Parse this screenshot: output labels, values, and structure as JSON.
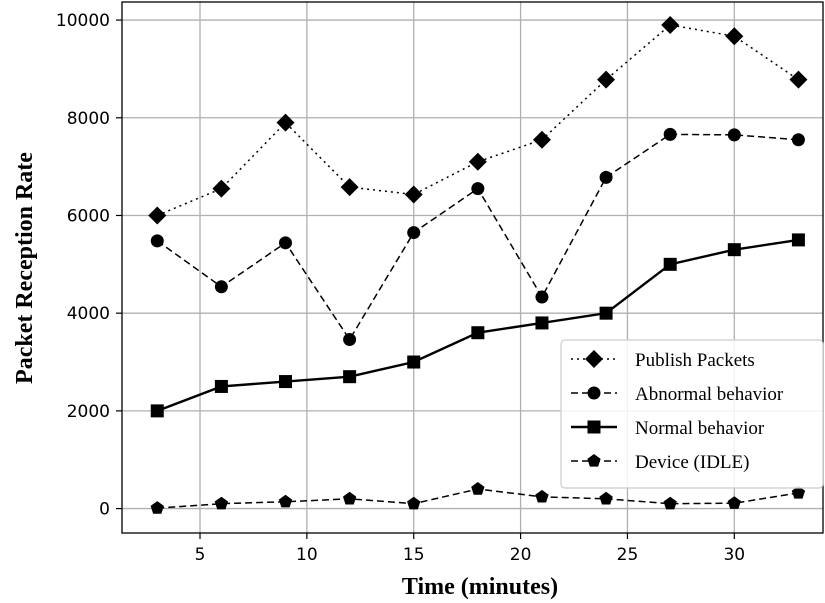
{
  "chart_data": {
    "type": "line",
    "xlabel": "Time (minutes)",
    "ylabel": "Packet Reception Rate",
    "xlim": [
      1.35,
      34.15
    ],
    "ylim": [
      -500,
      10370
    ],
    "xticks": [
      5,
      10,
      15,
      20,
      25,
      30
    ],
    "yticks": [
      0,
      2000,
      4000,
      6000,
      8000,
      10000
    ],
    "grid": true,
    "legend_position": "lower-right",
    "x": [
      3,
      6,
      9,
      12,
      15,
      18,
      21,
      24,
      27,
      30,
      33
    ],
    "series": [
      {
        "name": "Publish Packets",
        "linestyle": "dotted",
        "marker": "diamond",
        "values": [
          6000,
          6550,
          7900,
          6580,
          6430,
          7100,
          7550,
          8780,
          9900,
          9670,
          8780
        ]
      },
      {
        "name": "Abnormal behavior",
        "linestyle": "dashed",
        "marker": "circle",
        "values": [
          5480,
          4540,
          5440,
          3460,
          5650,
          6550,
          4330,
          6780,
          7660,
          7650,
          7550
        ]
      },
      {
        "name": "Normal behavior",
        "linestyle": "solid",
        "marker": "square",
        "values": [
          2000,
          2500,
          2600,
          2700,
          3000,
          3600,
          3800,
          4000,
          5000,
          5300,
          5500
        ]
      },
      {
        "name": "Device (IDLE)",
        "linestyle": "dashed",
        "marker": "pentagon",
        "values": [
          10,
          100,
          140,
          200,
          100,
          400,
          240,
          200,
          100,
          110,
          320
        ]
      }
    ],
    "colors": {
      "line": "#000000",
      "grid": "#b0b0b0",
      "legend_border": "#cccccc"
    }
  }
}
